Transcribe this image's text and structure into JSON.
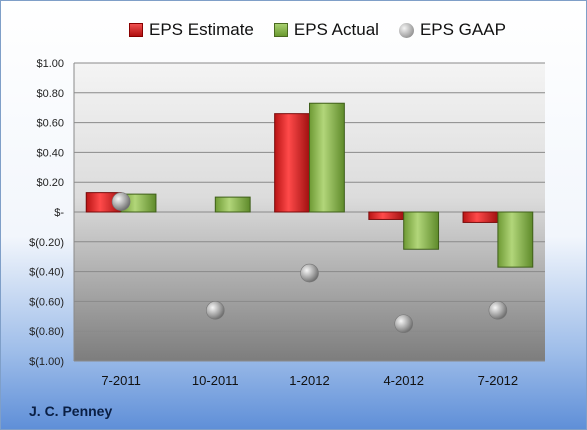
{
  "chart_data": {
    "type": "bar",
    "categories": [
      "7-2011",
      "10-2011",
      "1-2012",
      "4-2012",
      "7-2012"
    ],
    "series": [
      {
        "name": "EPS Estimate",
        "values": [
          0.13,
          null,
          0.66,
          -0.05,
          -0.07
        ],
        "color": "#cc2020",
        "style": "bar"
      },
      {
        "name": "EPS Actual",
        "values": [
          0.12,
          0.1,
          0.73,
          -0.25,
          -0.37
        ],
        "color": "#8ab54a",
        "style": "bar"
      },
      {
        "name": "EPS GAAP",
        "values": [
          0.07,
          -0.66,
          -0.41,
          -0.75,
          -0.66
        ],
        "color": "#a0a0a0",
        "style": "marker"
      }
    ],
    "ylim": [
      -1.0,
      1.0
    ],
    "ytick_step": 0.2,
    "ytick_labels": [
      "$(1.00)",
      "$(0.80)",
      "$(0.60)",
      "$(0.40)",
      "$(0.20)",
      "$-",
      "$0.20",
      "$0.40",
      "$0.60",
      "$0.80",
      "$1.00"
    ],
    "grid": true,
    "legend_position": "top",
    "title": "",
    "xlabel": "",
    "ylabel": ""
  },
  "footer": {
    "company": "J. C. Penney"
  }
}
